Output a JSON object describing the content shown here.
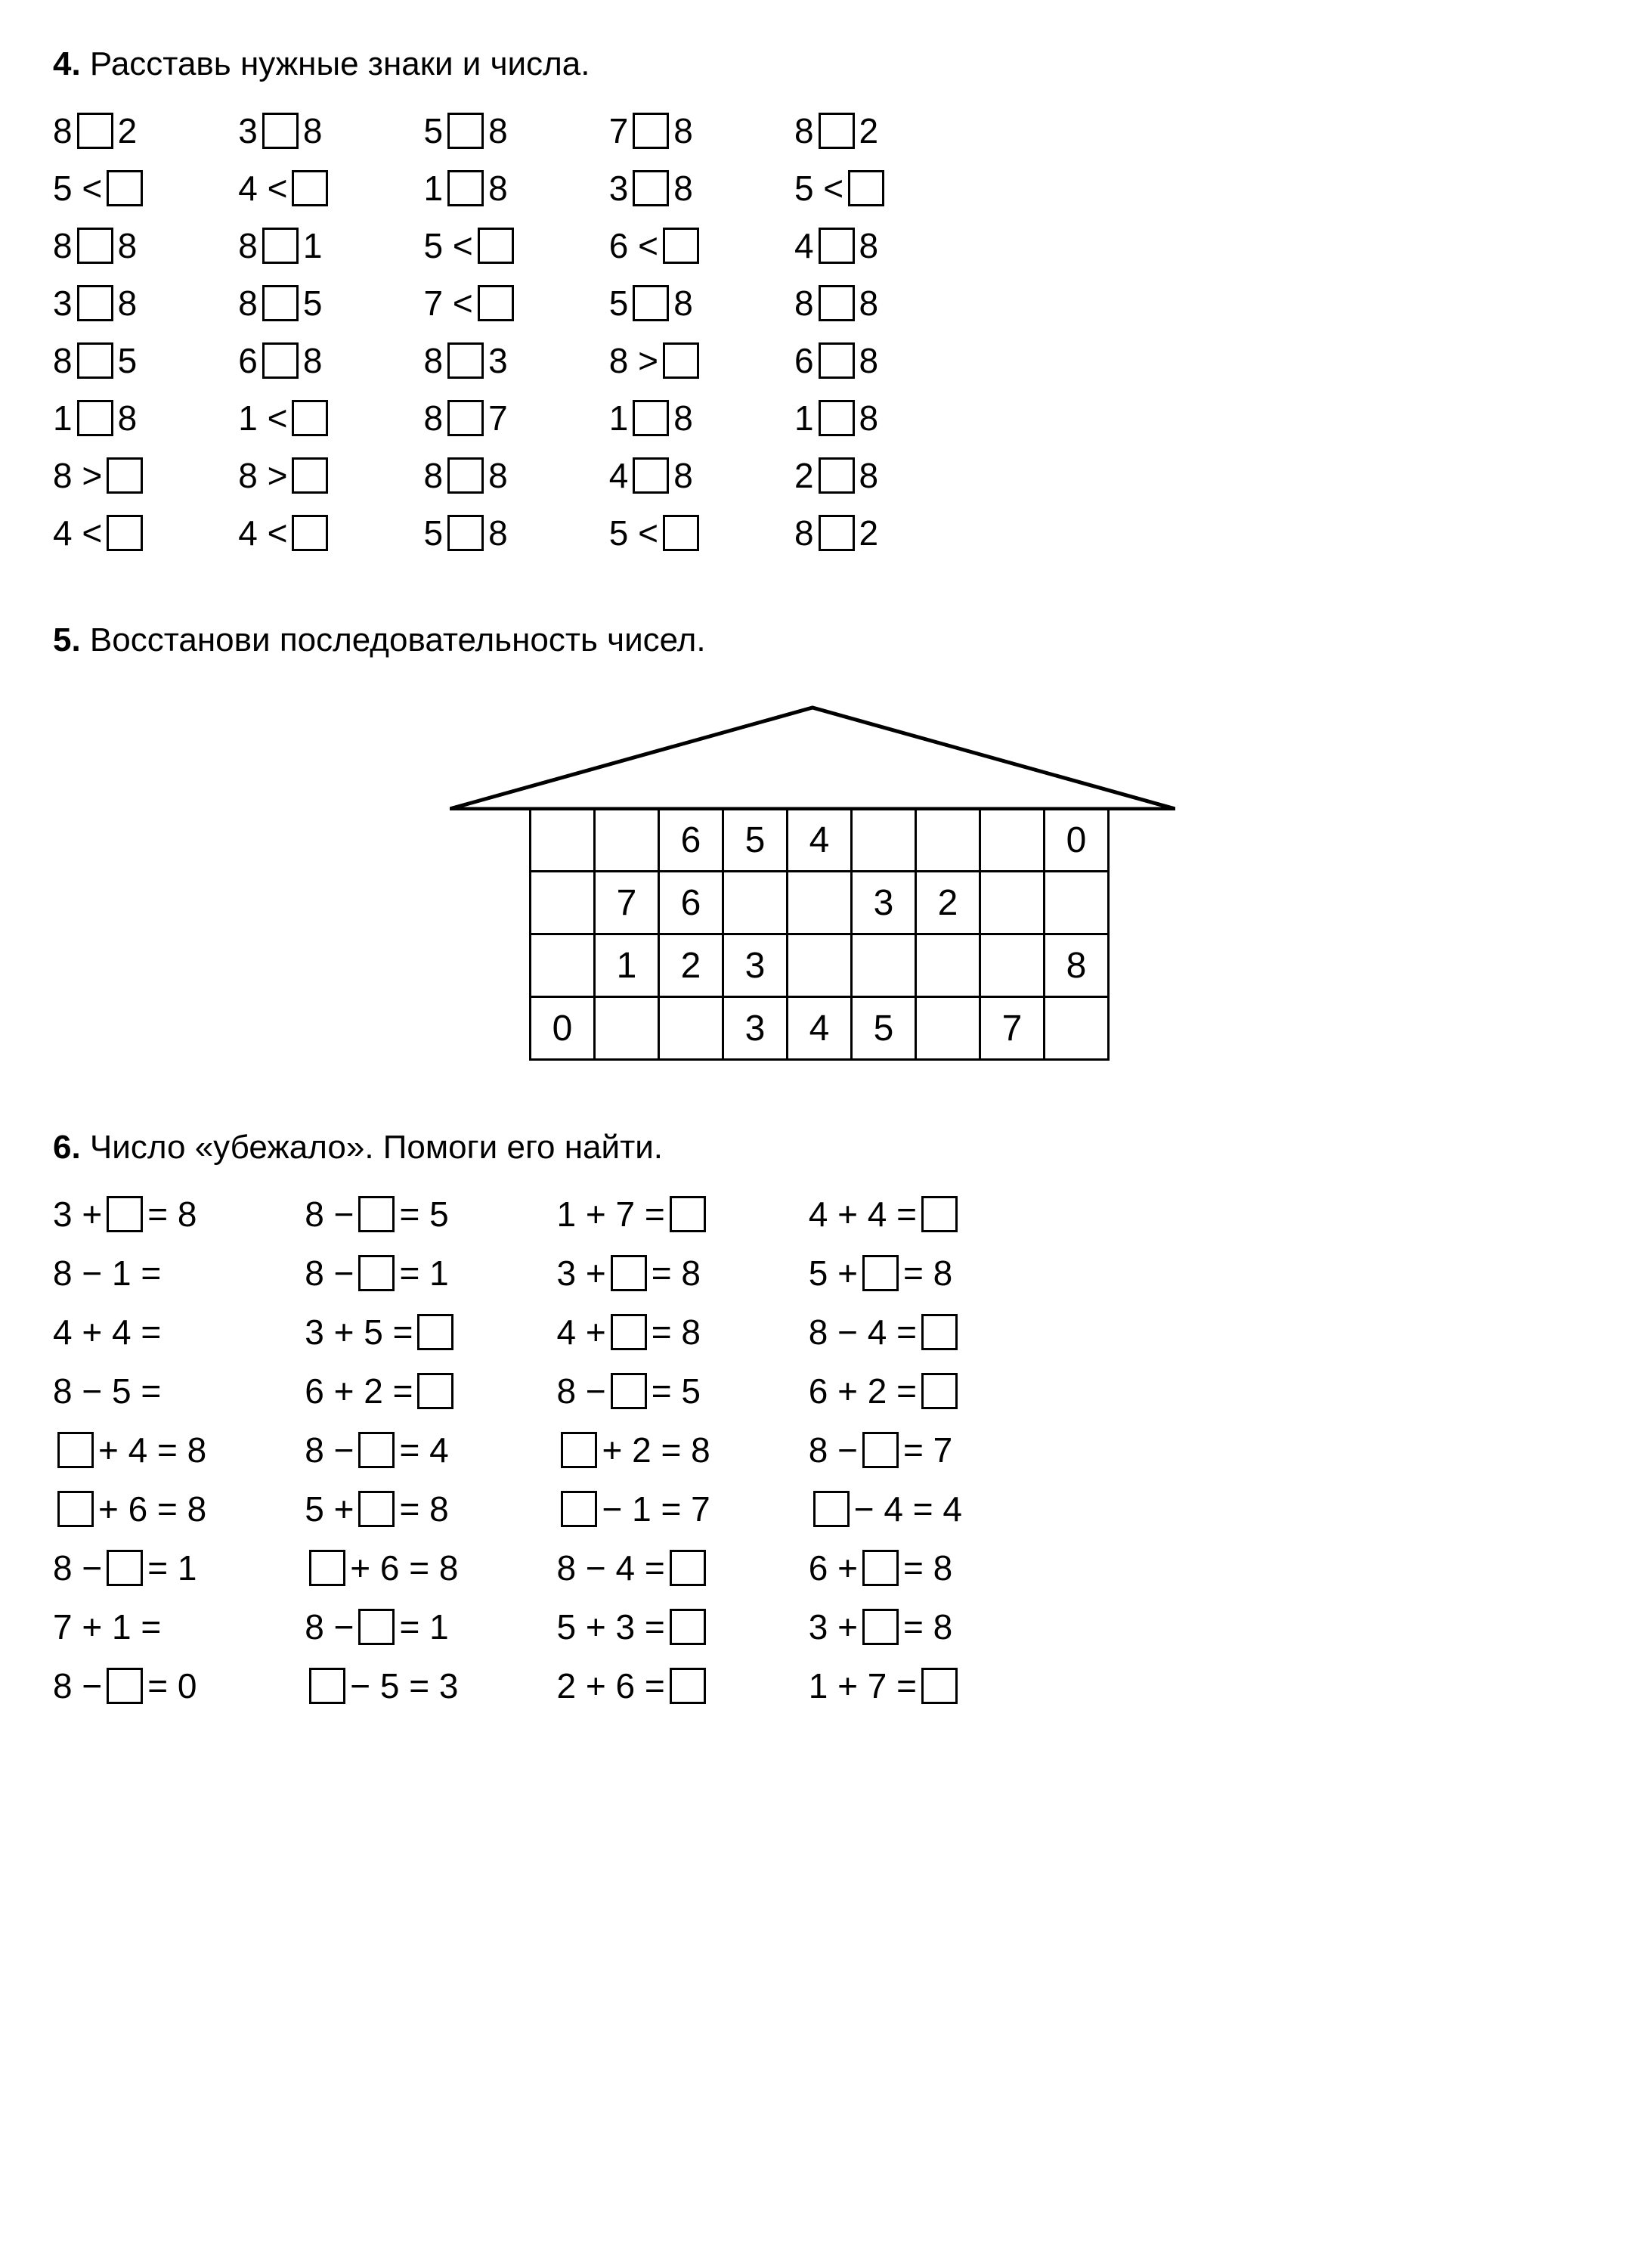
{
  "ex4": {
    "title_num": "4.",
    "title_text": " Расставь нужные знаки и числа.",
    "columns": [
      [
        {
          "type": "nbox",
          "a": "8",
          "b": "2"
        },
        {
          "type": "opbox",
          "a": "5",
          "op": "<"
        },
        {
          "type": "nbox",
          "a": "8",
          "b": "8"
        },
        {
          "type": "nbox",
          "a": "3",
          "b": "8"
        },
        {
          "type": "nbox",
          "a": "8",
          "b": "5"
        },
        {
          "type": "nbox",
          "a": "1",
          "b": "8"
        },
        {
          "type": "opbox",
          "a": "8",
          "op": ">"
        },
        {
          "type": "opbox",
          "a": "4",
          "op": "<"
        }
      ],
      [
        {
          "type": "nbox",
          "a": "3",
          "b": "8"
        },
        {
          "type": "opbox",
          "a": "4",
          "op": "<"
        },
        {
          "type": "nbox",
          "a": "8",
          "b": "1"
        },
        {
          "type": "nbox",
          "a": "8",
          "b": "5"
        },
        {
          "type": "nbox",
          "a": "6",
          "b": "8"
        },
        {
          "type": "opbox",
          "a": "1",
          "op": "<"
        },
        {
          "type": "opbox",
          "a": "8",
          "op": ">"
        },
        {
          "type": "opbox",
          "a": "4",
          "op": "<"
        }
      ],
      [
        {
          "type": "nbox",
          "a": "5",
          "b": "8"
        },
        {
          "type": "nbox",
          "a": "1",
          "b": "8"
        },
        {
          "type": "opbox",
          "a": "5",
          "op": "<"
        },
        {
          "type": "opbox",
          "a": "7",
          "op": "<"
        },
        {
          "type": "nbox",
          "a": "8",
          "b": "3"
        },
        {
          "type": "nbox",
          "a": "8",
          "b": "7"
        },
        {
          "type": "nbox",
          "a": "8",
          "b": "8"
        },
        {
          "type": "nbox",
          "a": "5",
          "b": "8"
        }
      ],
      [
        {
          "type": "nbox",
          "a": "7",
          "b": "8"
        },
        {
          "type": "nbox",
          "a": "3",
          "b": "8"
        },
        {
          "type": "opbox",
          "a": "6",
          "op": "<"
        },
        {
          "type": "nbox",
          "a": "5",
          "b": "8"
        },
        {
          "type": "opbox",
          "a": "8",
          "op": ">"
        },
        {
          "type": "nbox",
          "a": "1",
          "b": "8"
        },
        {
          "type": "nbox",
          "a": "4",
          "b": "8"
        },
        {
          "type": "opbox",
          "a": "5",
          "op": "<"
        }
      ],
      [
        {
          "type": "nbox",
          "a": "8",
          "b": "2"
        },
        {
          "type": "opbox",
          "a": "5",
          "op": "<"
        },
        {
          "type": "nbox",
          "a": "4",
          "b": "8"
        },
        {
          "type": "nbox",
          "a": "8",
          "b": "8"
        },
        {
          "type": "nbox",
          "a": "6",
          "b": "8"
        },
        {
          "type": "nbox",
          "a": "1",
          "b": "8"
        },
        {
          "type": "nbox",
          "a": "2",
          "b": "8"
        },
        {
          "type": "nbox",
          "a": "8",
          "b": "2"
        }
      ]
    ]
  },
  "ex5": {
    "title_num": "5.",
    "title_text": " Восстанови последовательность чисел.",
    "grid": [
      [
        "",
        "",
        "6",
        "5",
        "4",
        "",
        "",
        "",
        "0"
      ],
      [
        "",
        "7",
        "6",
        "",
        "",
        "3",
        "2",
        "",
        ""
      ],
      [
        "",
        "1",
        "2",
        "3",
        "",
        "",
        "",
        "",
        "8"
      ],
      [
        "0",
        "",
        "",
        "3",
        "4",
        "5",
        "",
        "7",
        ""
      ]
    ],
    "roof_width": 960,
    "roof_height": 140
  },
  "ex6": {
    "title_num": "6.",
    "title_text": " Число «убежало». Помоги его найти.",
    "columns": [
      [
        {
          "pre": "3 + ",
          "box": true,
          "post": " = 8"
        },
        {
          "pre": "8 − 1 =",
          "box": false,
          "post": ""
        },
        {
          "pre": "4 + 4 =",
          "box": false,
          "post": ""
        },
        {
          "pre": "8 − 5 =",
          "box": false,
          "post": ""
        },
        {
          "pre": "",
          "box": true,
          "post": " + 4 = 8"
        },
        {
          "pre": "",
          "box": true,
          "post": " + 6 = 8"
        },
        {
          "pre": "8 − ",
          "box": true,
          "post": " = 1"
        },
        {
          "pre": "7 + 1 =",
          "box": false,
          "post": ""
        },
        {
          "pre": "8 − ",
          "box": true,
          "post": " = 0"
        }
      ],
      [
        {
          "pre": "8 − ",
          "box": true,
          "post": " = 5"
        },
        {
          "pre": "8 − ",
          "box": true,
          "post": " = 1"
        },
        {
          "pre": "3 + 5 = ",
          "box": true,
          "post": ""
        },
        {
          "pre": "6 + 2 = ",
          "box": true,
          "post": ""
        },
        {
          "pre": "8 − ",
          "box": true,
          "post": " = 4"
        },
        {
          "pre": "5 + ",
          "box": true,
          "post": " = 8"
        },
        {
          "pre": "",
          "box": true,
          "post": " + 6 = 8"
        },
        {
          "pre": "8 − ",
          "box": true,
          "post": " = 1"
        },
        {
          "pre": "",
          "box": true,
          "post": " − 5 = 3"
        }
      ],
      [
        {
          "pre": "1 + 7 = ",
          "box": true,
          "post": ""
        },
        {
          "pre": "3 + ",
          "box": true,
          "post": " = 8"
        },
        {
          "pre": "4 + ",
          "box": true,
          "post": " = 8"
        },
        {
          "pre": "8 − ",
          "box": true,
          "post": " = 5"
        },
        {
          "pre": "",
          "box": true,
          "post": " + 2 = 8"
        },
        {
          "pre": "",
          "box": true,
          "post": " − 1 = 7"
        },
        {
          "pre": "8 − 4 = ",
          "box": true,
          "post": ""
        },
        {
          "pre": "5 + 3 = ",
          "box": true,
          "post": ""
        },
        {
          "pre": "2 + 6 = ",
          "box": true,
          "post": ""
        }
      ],
      [
        {
          "pre": "4 + 4 = ",
          "box": true,
          "post": ""
        },
        {
          "pre": "5 + ",
          "box": true,
          "post": " = 8"
        },
        {
          "pre": "8 − 4 = ",
          "box": true,
          "post": ""
        },
        {
          "pre": "6 + 2 = ",
          "box": true,
          "post": ""
        },
        {
          "pre": "8 − ",
          "box": true,
          "post": " = 7"
        },
        {
          "pre": "",
          "box": true,
          "post": " − 4 = 4"
        },
        {
          "pre": "6 + ",
          "box": true,
          "post": " = 8"
        },
        {
          "pre": "3 + ",
          "box": true,
          "post": " = 8"
        },
        {
          "pre": "1 + 7 = ",
          "box": true,
          "post": ""
        }
      ]
    ]
  }
}
